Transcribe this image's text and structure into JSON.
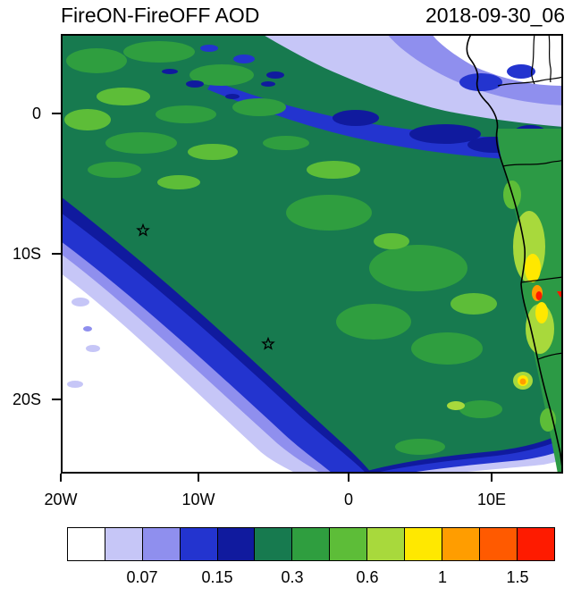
{
  "chart_data": {
    "type": "heatmap",
    "title": "FireON-FireOFF AOD",
    "time": "2018-09-30_06",
    "variable": "Aerosol optical depth difference (fires ON minus fires OFF)",
    "x_axis": {
      "tick_labels": [
        "20W",
        "10W",
        "0",
        "10E"
      ],
      "approx_range": [
        "20W",
        "15E"
      ]
    },
    "y_axis": {
      "tick_labels": [
        "0",
        "10S",
        "20S"
      ],
      "approx_range": [
        "6N",
        "25S"
      ]
    },
    "colorbar": {
      "orientation": "horizontal",
      "tick_labels": [
        "0.07",
        "0.15",
        "0.3",
        "0.6",
        "1",
        "1.5"
      ],
      "colors": [
        "#ffffff",
        "#c6c6f7",
        "#8f8fee",
        "#2334cf",
        "#101a9e",
        "#177a4f",
        "#2f9e3f",
        "#5dbd38",
        "#a8d93c",
        "#ffe800",
        "#ff9d00",
        "#ff5a00",
        "#fe1b00"
      ]
    },
    "markers": [
      {
        "type": "star",
        "approx_lon": "14W",
        "approx_lat": "8S"
      },
      {
        "type": "star",
        "approx_lon": "5.5W",
        "approx_lat": "16S"
      },
      {
        "type": "triangle",
        "color": "#fe1b00",
        "approx_lon": "15E",
        "approx_lat": "12.5S"
      }
    ],
    "overlays": [
      "African coastline",
      "country borders"
    ],
    "features": [
      "Dark-green plume (AOD ~0.3-0.45) covering most of the Gulf of Guinea and southeast Atlantic",
      "Sharp gradient to near-zero AOD (white) over the open South Atlantic in the southwest",
      "Low values (white/lavender/blue) north of the equator and in the northeast corner",
      "Localized maxima above 1 (yellow/orange/red) over land near 13E-15E, 10S-13S"
    ]
  }
}
